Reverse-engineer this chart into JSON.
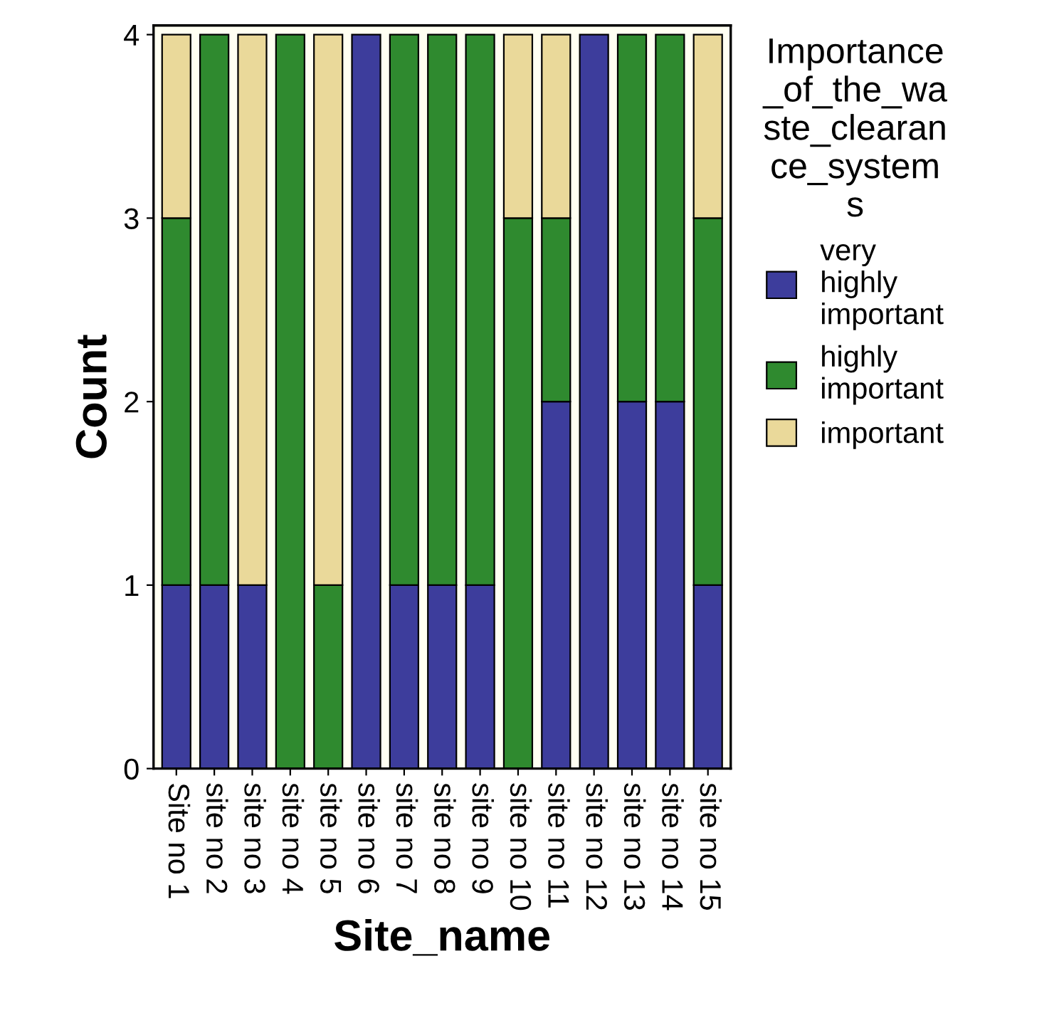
{
  "chart_data": {
    "type": "bar",
    "stacked": true,
    "xlabel": "Site_name",
    "ylabel": "Count",
    "legend_title": "Importance\n_of_the_wa\nste_clearan\nce_system\ns",
    "legend": "right",
    "categories": [
      "Site no 1",
      "site no 2",
      "site no 3",
      "site no 4",
      "site no 5",
      "site no 6",
      "site no 7",
      "site no 8",
      "site no 9",
      "site no 10",
      "site no 11",
      "site no 12",
      "site no 13",
      "site no 14",
      "site no 15"
    ],
    "series": [
      {
        "name": "very\nhighly\nimportant",
        "color": "#3d3d9c",
        "values": [
          1,
          1,
          1,
          0,
          0,
          4,
          1,
          1,
          1,
          0,
          2,
          4,
          2,
          2,
          1
        ]
      },
      {
        "name": "highly\nimportant",
        "color": "#2f8a2f",
        "values": [
          2,
          3,
          0,
          4,
          1,
          0,
          3,
          3,
          3,
          3,
          1,
          0,
          2,
          2,
          2
        ]
      },
      {
        "name": "important",
        "color": "#ead99a",
        "values": [
          1,
          0,
          3,
          0,
          3,
          0,
          0,
          0,
          0,
          1,
          1,
          0,
          0,
          0,
          1
        ]
      }
    ],
    "ylim": [
      0,
      4.05
    ],
    "yticks": [
      0,
      1,
      2,
      3,
      4
    ],
    "grid": false
  }
}
